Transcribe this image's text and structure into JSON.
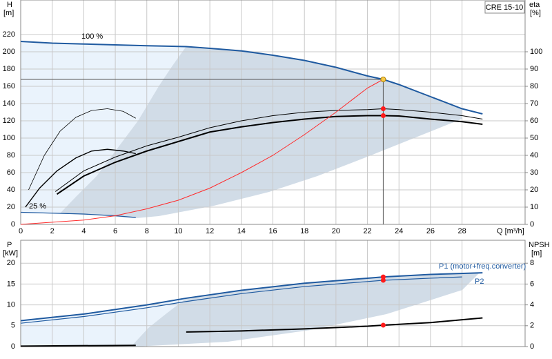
{
  "chart_data": [
    {
      "type": "line",
      "title": "CRE 15-10",
      "y_label": "H",
      "y_unit": "[m]",
      "y2_label": "eta",
      "y2_unit": "[%]",
      "x_label": "Q [m³/h]",
      "xlim": [
        0,
        32
      ],
      "xticks": [
        0,
        2,
        4,
        6,
        8,
        10,
        12,
        14,
        16,
        18,
        20,
        22,
        24,
        26,
        28
      ],
      "ylim": [
        0,
        260
      ],
      "yticks": [
        0,
        20,
        40,
        60,
        80,
        100,
        120,
        140,
        160,
        180,
        200,
        220
      ],
      "y2lim": [
        0,
        130
      ],
      "y2ticks": [
        0,
        10,
        20,
        30,
        40,
        50,
        60,
        70,
        80,
        90,
        100
      ],
      "grid": true,
      "annotations": [
        "100 %",
        "25 %"
      ],
      "series": [
        {
          "x": [
            0,
            2,
            4,
            6,
            8,
            10.5,
            12,
            14,
            16,
            18,
            20,
            22,
            23,
            24,
            26,
            28,
            29.3
          ],
          "values": [
            212,
            210,
            209,
            208,
            207,
            206,
            204,
            201,
            196,
            190,
            182,
            172,
            168,
            162,
            148,
            134,
            128
          ],
          "color": "#1f5aa0",
          "line_width": 2
        },
        {
          "x": [
            0,
            2,
            4,
            6,
            7.3
          ],
          "values": [
            14,
            13,
            12,
            10,
            8
          ],
          "color": "#1f5aa0",
          "line_width": 1.2
        },
        {
          "x": [
            0.5,
            1.5,
            2.5,
            3.5,
            4.5,
            5.5,
            6.5,
            7.3
          ],
          "values": [
            20,
            40,
            54,
            62,
            66,
            67,
            65.5,
            61.5
          ],
          "color": "#000000",
          "line_width": 0.8,
          "axis": "y2"
        },
        {
          "x": [
            0.3,
            1.2,
            2.3,
            3.5,
            4.5,
            5.5,
            6.5,
            7.3
          ],
          "values": [
            10,
            21,
            31,
            38.5,
            42.5,
            43.5,
            42.5,
            41
          ],
          "color": "#000000",
          "line_width": 1.4,
          "axis": "y2"
        },
        {
          "x": [
            2.2,
            4,
            6,
            8,
            10,
            12,
            14,
            16,
            18,
            20,
            22,
            23,
            24,
            26,
            28,
            29.3
          ],
          "values": [
            19,
            31,
            39,
            45.5,
            50.5,
            56,
            60,
            63,
            65,
            66,
            66.5,
            67,
            66.5,
            65,
            63,
            61
          ],
          "color": "#000000",
          "line_width": 1,
          "axis": "y2"
        },
        {
          "x": [
            2.3,
            4,
            6,
            8,
            10,
            12,
            14,
            16,
            18,
            20,
            22,
            23,
            24,
            26,
            28,
            29.3
          ],
          "values": [
            17.5,
            28,
            36,
            42.5,
            48,
            53.5,
            56.5,
            59,
            61,
            62.5,
            63,
            63,
            62.8,
            61,
            59.5,
            58
          ],
          "color": "#000000",
          "line_width": 2,
          "axis": "y2"
        },
        {
          "x": [
            0,
            4,
            6,
            8,
            10,
            12,
            14,
            16,
            18,
            20,
            22,
            23
          ],
          "values": [
            0,
            5,
            10,
            18,
            28,
            42,
            60,
            80,
            104,
            130,
            158,
            168
          ],
          "color": "#ff2a2a",
          "line_width": 1
        }
      ],
      "points": [
        {
          "x": 23,
          "y": 168,
          "color": "#f7c948"
        },
        {
          "x": 23,
          "y": 67,
          "color": "#ff1a1a",
          "axis": "y2"
        },
        {
          "x": 23,
          "y": 63,
          "color": "#ff1a1a",
          "axis": "y2"
        }
      ],
      "duty_point": {
        "x": 23,
        "y": 168
      }
    },
    {
      "type": "line",
      "y_label": "P",
      "y_unit": "[kW]",
      "y2_label": "NPSH",
      "y2_unit": "[m]",
      "xlim": [
        0,
        32
      ],
      "ylim": [
        0,
        25.5
      ],
      "yticks": [
        0,
        5,
        10,
        15,
        20
      ],
      "y2lim": [
        0,
        10.2
      ],
      "y2ticks": [
        0,
        2,
        4,
        6,
        8
      ],
      "grid": true,
      "series": [
        {
          "name": "P1 (motor+freq.converter)",
          "x": [
            0,
            4,
            8,
            10.5,
            14,
            18,
            22,
            23,
            26,
            29.3
          ],
          "values": [
            6.2,
            7.8,
            10,
            11.6,
            13.5,
            15.2,
            16.4,
            16.7,
            17.3,
            17.7
          ],
          "color": "#1f5aa0",
          "line_width": 2
        },
        {
          "name": "P2",
          "x": [
            0,
            4,
            8,
            10.5,
            14,
            18,
            22,
            23,
            26,
            28
          ],
          "values": [
            5.6,
            7.2,
            9.3,
            10.8,
            12.7,
            14.4,
            15.6,
            15.9,
            16.4,
            16.7
          ],
          "color": "#1f5aa0",
          "line_width": 1.2
        },
        {
          "x": [
            10.5,
            14,
            18,
            22,
            23,
            26,
            29.3
          ],
          "values": [
            1.4,
            1.5,
            1.7,
            1.95,
            2.05,
            2.3,
            2.75
          ],
          "color": "#000000",
          "line_width": 2,
          "axis": "y2"
        },
        {
          "x": [
            0,
            7.3
          ],
          "values": [
            0.1,
            0.3
          ],
          "color": "#000000",
          "line_width": 2
        }
      ],
      "points": [
        {
          "x": 23,
          "y": 16.7,
          "color": "#ff1a1a"
        },
        {
          "x": 23,
          "y": 15.9,
          "color": "#ff1a1a"
        },
        {
          "x": 23,
          "y": 2.05,
          "color": "#ff1a1a",
          "axis": "y2"
        }
      ]
    }
  ]
}
